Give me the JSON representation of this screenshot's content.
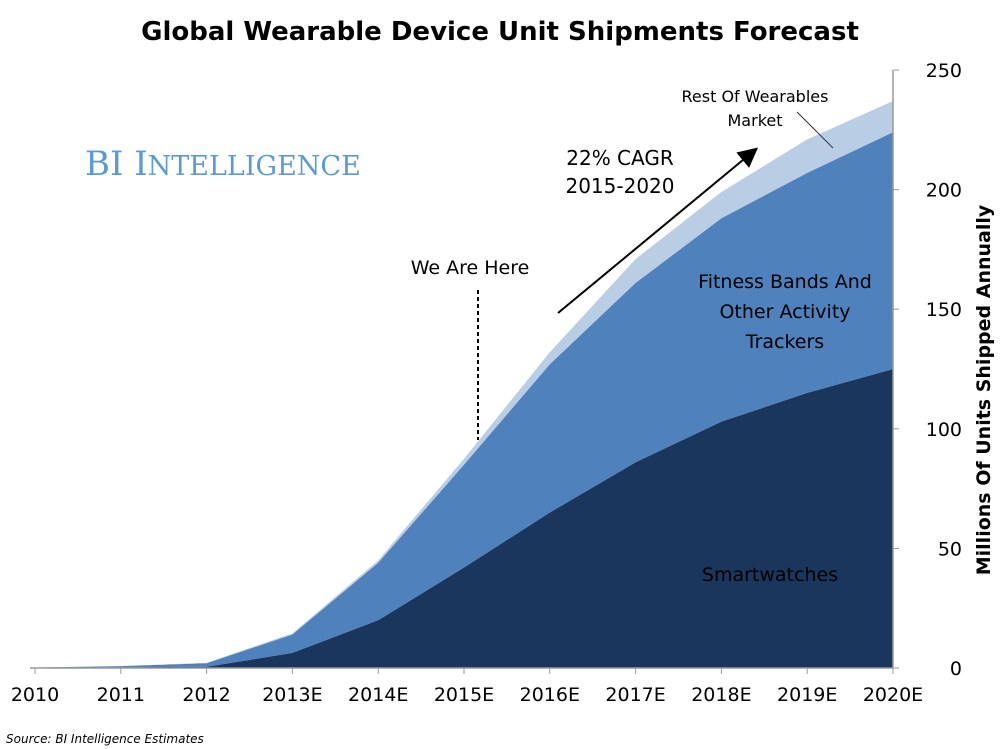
{
  "chart_data": {
    "type": "area",
    "stacked": true,
    "title": "Global Wearable Device Unit Shipments Forecast",
    "ylabel": "Millions Of Units Shipped Annually",
    "xlabel": "",
    "y_axis_side": "right",
    "ylim": [
      0,
      250
    ],
    "yticks": [
      0,
      50,
      100,
      150,
      200,
      250
    ],
    "grid": false,
    "categories": [
      "2010",
      "2011",
      "2012",
      "2013E",
      "2014E",
      "2015E",
      "2016E",
      "2017E",
      "2018E",
      "2019E",
      "2020E"
    ],
    "series": [
      {
        "name": "Smartwatches",
        "color": "#1b365d",
        "values": [
          0,
          0.3,
          0.5,
          6.3,
          20,
          42,
          65,
          86,
          103,
          115,
          125
        ]
      },
      {
        "name": "Fitness Bands And Other Activity Trackers",
        "color": "#4f81bd",
        "values": [
          0.2,
          0.5,
          1.5,
          7.7,
          24,
          43,
          62,
          75,
          85,
          92,
          99
        ]
      },
      {
        "name": "Rest Of Wearables Market",
        "color": "#b9cde5",
        "values": [
          0,
          0,
          0.2,
          0.5,
          1,
          2.5,
          5,
          10,
          11,
          14,
          13
        ]
      }
    ],
    "annotations": {
      "we_are_here": "We Are Here",
      "cagr_line1": "22% CAGR",
      "cagr_line2": "2015-2020",
      "rest_line1": "Rest Of Wearables",
      "rest_line2": "Market",
      "fitness_line1": "Fitness Bands And",
      "fitness_line2": "Other Activity",
      "fitness_line3": "Trackers",
      "smartwatches": "Smartwatches"
    },
    "logo": "BI Intelligence",
    "source": "Source: BI Intelligence Estimates"
  }
}
